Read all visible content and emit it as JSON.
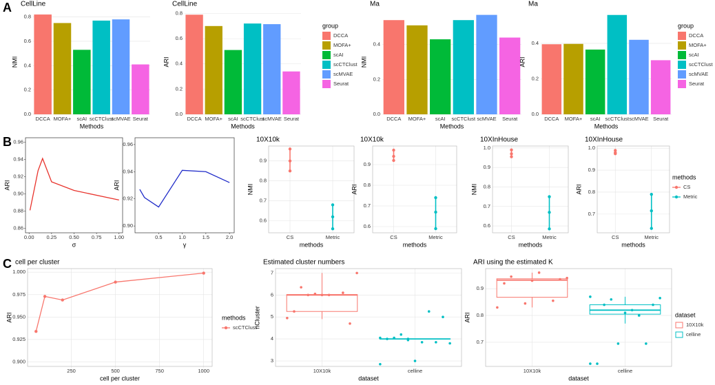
{
  "panel_labels": [
    "A",
    "B",
    "C"
  ],
  "chart_data": [
    {
      "type": "bar",
      "title": "CellLine",
      "ylabel": "NMI",
      "xlabel": "Methods",
      "categories": [
        "DCCA",
        "MOFA+",
        "scAI",
        "scCTClust",
        "scMVAE",
        "Seurat"
      ],
      "values": [
        0.82,
        0.75,
        0.53,
        0.77,
        0.78,
        0.41
      ],
      "colors": [
        "#F8766D",
        "#B79F00",
        "#00BA38",
        "#00BFC4",
        "#619CFF",
        "#F564E3"
      ],
      "ylim": [
        0,
        0.86
      ],
      "yticks": [
        {
          "value": 0,
          "label": "0.0"
        },
        0.2,
        0.4,
        0.6,
        0.8
      ],
      "grid": true
    },
    {
      "type": "bar",
      "title": "CellLine",
      "ylabel": "ARI",
      "xlabel": "Methods",
      "categories": [
        "DCCA",
        "MOFA+",
        "scAI",
        "scCTClust",
        "scMVAE",
        "Seurat"
      ],
      "values": [
        0.79,
        0.7,
        0.51,
        0.72,
        0.715,
        0.34
      ],
      "colors": [
        "#F8766D",
        "#B79F00",
        "#00BA38",
        "#00BFC4",
        "#619CFF",
        "#F564E3"
      ],
      "ylim": [
        0,
        0.83
      ],
      "yticks": [
        {
          "value": 0,
          "label": "0.0"
        },
        0.2,
        0.4,
        0.6,
        0.8
      ],
      "grid": true,
      "legend_title": "group"
    },
    {
      "type": "bar",
      "title": "Ma",
      "ylabel": "NMI",
      "xlabel": "Methods",
      "categories": [
        "DCCA",
        "MOFA+",
        "scAI",
        "scCTClust",
        "scMVAE",
        "Seurat"
      ],
      "values": [
        0.54,
        0.51,
        0.43,
        0.54,
        0.57,
        0.44
      ],
      "colors": [
        "#F8766D",
        "#B79F00",
        "#00BA38",
        "#00BFC4",
        "#619CFF",
        "#F564E3"
      ],
      "ylim": [
        0,
        0.6
      ],
      "yticks": [
        {
          "value": 0,
          "label": "0.0"
        },
        0.2,
        0.4
      ],
      "grid": true
    },
    {
      "type": "bar",
      "title": "Ma",
      "ylabel": "ARI",
      "xlabel": "Methods",
      "categories": [
        "DCCA",
        "MOFA+",
        "scAI",
        "scCTClust",
        "scMVAE",
        "Seurat"
      ],
      "values": [
        0.395,
        0.397,
        0.365,
        0.56,
        0.42,
        0.305
      ],
      "colors": [
        "#F8766D",
        "#B79F00",
        "#00BA38",
        "#00BFC4",
        "#619CFF",
        "#F564E3"
      ],
      "ylim": [
        0,
        0.59
      ],
      "yticks": [
        {
          "value": 0,
          "label": "0.0"
        },
        0.2,
        0.4
      ],
      "grid": true,
      "legend_title": "group"
    },
    {
      "type": "line",
      "ylabel": "ARI",
      "xlabel": "σ",
      "color": "#E8322B",
      "x": [
        0.01,
        0.1,
        0.15,
        0.25,
        0.5,
        1.0
      ],
      "values": [
        0.881,
        0.927,
        0.941,
        0.914,
        0.904,
        0.893
      ],
      "xlim": [
        -0.04,
        1.04
      ],
      "xticks": [
        {
          "value": 0,
          "label": "0.00"
        },
        0.25,
        {
          "value": 0.5,
          "label": "0.50"
        },
        0.75,
        {
          "value": 1,
          "label": "1.00"
        }
      ],
      "ylim": [
        0.855,
        0.965
      ],
      "yticks": [
        0.86,
        0.88,
        {
          "value": 0.9,
          "label": "0.90"
        },
        0.92,
        0.94,
        0.96
      ],
      "grid": false
    },
    {
      "type": "line",
      "ylabel": "ARI",
      "xlabel": "γ",
      "color": "#1F2BC8",
      "x": [
        0.1,
        0.2,
        0.5,
        1.0,
        1.5,
        2.0
      ],
      "values": [
        0.927,
        0.921,
        0.914,
        0.941,
        0.94,
        0.932
      ],
      "xlim": [
        0.0,
        2.1
      ],
      "xticks": [
        0.5,
        {
          "value": 1,
          "label": "1.0"
        },
        1.5,
        {
          "value": 2,
          "label": "2.0"
        }
      ],
      "ylim": [
        0.895,
        0.965
      ],
      "yticks": [
        {
          "value": 0.9,
          "label": "0.90"
        },
        0.92,
        0.94,
        0.96
      ],
      "grid": false
    },
    {
      "type": "pointrange",
      "title": "10X10k",
      "ylabel": "NMI",
      "xlabel": "methods",
      "categories": [
        "CS",
        "Metric"
      ],
      "colors": [
        "#F8766D",
        "#00BFC4"
      ],
      "values": [
        [
          0.96,
          0.9,
          0.85
        ],
        [
          0.68,
          0.62,
          0.56
        ]
      ],
      "ylim": [
        0.54,
        0.975
      ],
      "yticks": [
        0.6,
        0.7,
        0.8,
        0.9
      ],
      "grid": true
    },
    {
      "type": "pointrange",
      "title": "10X10k",
      "ylabel": "ARI",
      "xlabel": "methods",
      "categories": [
        "CS",
        "Metric"
      ],
      "colors": [
        "#F8766D",
        "#00BFC4"
      ],
      "values": [
        [
          0.97,
          0.94,
          0.92
        ],
        [
          0.74,
          0.67,
          0.59
        ]
      ],
      "ylim": [
        0.57,
        0.99
      ],
      "yticks": [
        0.6,
        0.7,
        0.8,
        0.9
      ],
      "grid": true
    },
    {
      "type": "pointrange",
      "title": "10XInHouse",
      "ylabel": "NMI",
      "xlabel": "methods",
      "categories": [
        "CS",
        "Metric"
      ],
      "colors": [
        "#F8766D",
        "#00BFC4"
      ],
      "values": [
        [
          0.99,
          0.97,
          0.955
        ],
        [
          0.75,
          0.67,
          0.585
        ]
      ],
      "ylim": [
        0.565,
        1.01
      ],
      "yticks": [
        0.6,
        0.7,
        0.8,
        0.9,
        {
          "value": 1,
          "label": "1.0"
        }
      ],
      "grid": true
    },
    {
      "type": "pointrange",
      "title": "10XInHouse",
      "ylabel": "ARI",
      "xlabel": "methods",
      "categories": [
        "CS",
        "Metric"
      ],
      "colors": [
        "#F8766D",
        "#00BFC4"
      ],
      "values": [
        [
          0.99,
          0.98,
          0.975
        ],
        [
          0.79,
          0.715,
          0.635
        ]
      ],
      "ylim": [
        0.615,
        1.01
      ],
      "yticks": [
        0.7,
        0.8,
        0.9,
        {
          "value": 1,
          "label": "1.0"
        }
      ],
      "grid": true,
      "legend_title": "methods"
    },
    {
      "type": "line",
      "title": "cell per cluster",
      "ylabel": "ARI",
      "xlabel": "cell per cluster",
      "x": [
        50,
        100,
        200,
        500,
        1000
      ],
      "series": [
        {
          "name": "scCTClust",
          "color": "#F8766D",
          "values": [
            0.934,
            0.973,
            0.969,
            0.989,
            0.999
          ]
        }
      ],
      "xlim": [
        2,
        1048
      ],
      "xticks": [
        250,
        500,
        750,
        1000
      ],
      "ylim": [
        0.895,
        1.004
      ],
      "yticks": [
        {
          "value": 0.9,
          "label": "0.900"
        },
        {
          "value": 0.925,
          "label": "0.925"
        },
        {
          "value": 0.95,
          "label": "0.950"
        },
        {
          "value": 0.975,
          "label": "0.975"
        },
        {
          "value": 1,
          "label": "1.000"
        }
      ],
      "grid": true,
      "legend_title": "methods"
    },
    {
      "type": "box",
      "title": "Estimated cluster numbers",
      "ylabel": "nCluster",
      "xlabel": "dataset",
      "categories": [
        "10X10k",
        "celline"
      ],
      "colors": [
        "#F8766D",
        "#00BFC4"
      ],
      "boxes": [
        {
          "min": 4.9,
          "q1": 5.25,
          "median": 6.0,
          "q3": 6.02,
          "max": 7.0,
          "points": [
            4.95,
            6.05,
            6.1,
            5.25,
            6.0,
            4.7,
            6.35,
            6.0,
            7.0,
            6.0
          ]
        },
        {
          "min": 4.0,
          "q1": 4.0,
          "median": 4.0,
          "q3": 4.0,
          "max": 4.0,
          "points": [
            4.05,
            3.95,
            3.85,
            4.0,
            3.0,
            5.0,
            4.05,
            3.85,
            3.8,
            4.2,
            5.25,
            2.85,
            4.0
          ]
        }
      ],
      "ylim": [
        2.75,
        7.2
      ],
      "yticks": [
        3,
        4,
        5,
        6,
        7
      ],
      "grid": true
    },
    {
      "type": "box",
      "title": "ARI using the estimated K",
      "ylabel": "ARI",
      "xlabel": "dataset",
      "categories": [
        "10X10k",
        "celline"
      ],
      "colors": [
        "#F8766D",
        "#00BFC4"
      ],
      "boxes": [
        {
          "min": 0.83,
          "q1": 0.868,
          "median": 0.932,
          "q3": 0.937,
          "max": 0.96,
          "points": [
            0.83,
            0.845,
            0.855,
            0.92,
            0.93,
            0.935,
            0.945,
            0.96,
            0.94
          ]
        },
        {
          "min": 0.77,
          "q1": 0.805,
          "median": 0.82,
          "q3": 0.84,
          "max": 0.87,
          "points": [
            0.62,
            0.695,
            0.695,
            0.62,
            0.81,
            0.84,
            0.84,
            0.82,
            0.865,
            0.86,
            0.8,
            0.87
          ]
        }
      ],
      "ylim": [
        0.61,
        0.975
      ],
      "yticks": [
        0.7,
        0.8,
        0.9
      ],
      "grid": true,
      "legend_title": "dataset"
    }
  ]
}
